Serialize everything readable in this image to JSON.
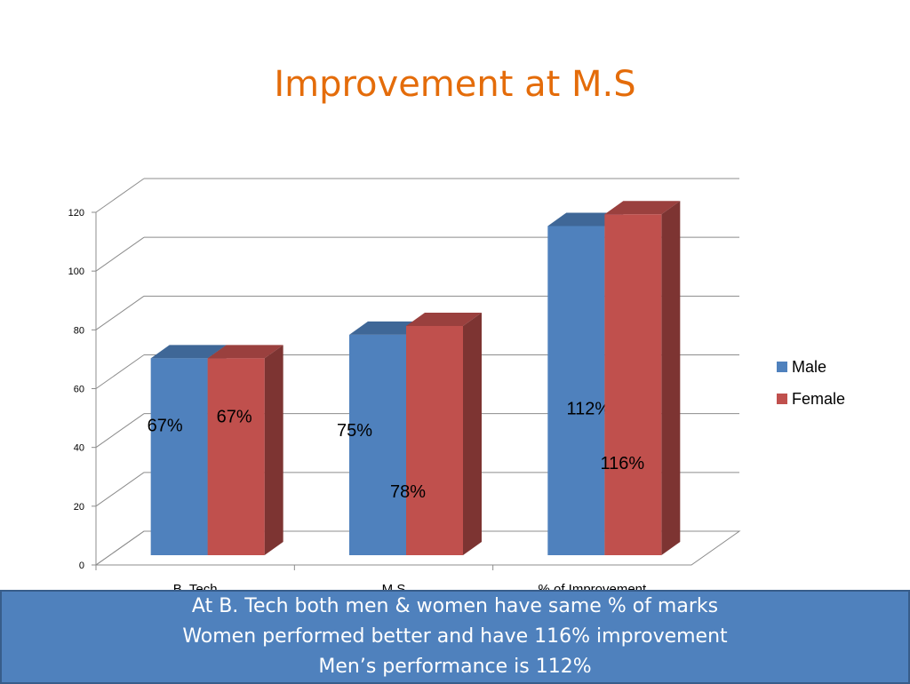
{
  "slide": {
    "title": "Improvement at M.S"
  },
  "chart_data": {
    "type": "bar",
    "title": "",
    "xlabel": "",
    "ylabel": "",
    "categories": [
      "B. Tech",
      "M.S",
      "% of Improvement"
    ],
    "series": [
      {
        "name": "Male",
        "values": [
          67,
          75,
          112
        ],
        "labels": [
          "67%",
          "75%",
          "112%"
        ]
      },
      {
        "name": "Female",
        "values": [
          67,
          78,
          116
        ],
        "labels": [
          "67%",
          "78%",
          "116%"
        ]
      }
    ],
    "ylim": [
      0,
      120
    ],
    "yticks": [
      0,
      20,
      40,
      60,
      80,
      100,
      120
    ],
    "grid": true,
    "legend": "right",
    "colors": {
      "Male": "#4F81BD",
      "Female": "#C0504D"
    }
  },
  "caption": {
    "lines": [
      "At B. Tech both men & women have same % of marks",
      "Women performed better and have 116% improvement",
      "Men’s performance is 112%"
    ]
  }
}
